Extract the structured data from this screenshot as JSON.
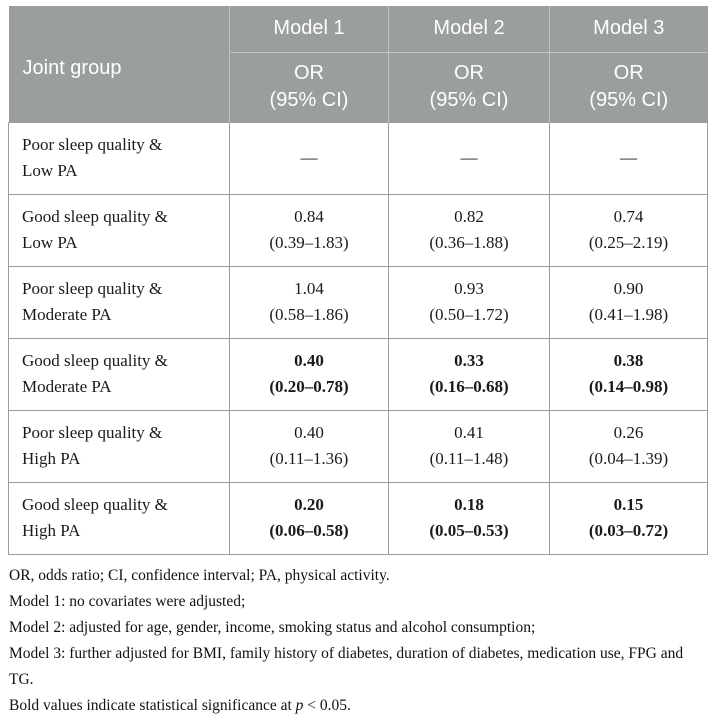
{
  "colors": {
    "header_bg": "#9b9e9e",
    "header_text": "#ffffff",
    "header_divider": "#bfc2c2",
    "grid_line": "#9c9c9c",
    "body_text": "#1a1a1a"
  },
  "table": {
    "header": {
      "joint_group": "Joint group",
      "models": [
        "Model 1",
        "Model 2",
        "Model 3"
      ],
      "subheader_line1": "OR",
      "subheader_line2": "(95% CI)"
    },
    "rows": [
      {
        "label1": "Poor sleep quality &",
        "label2": "Low PA",
        "bold": false,
        "m1_or": "—",
        "m1_ci": "",
        "m2_or": "—",
        "m2_ci": "",
        "m3_or": "—",
        "m3_ci": ""
      },
      {
        "label1": "Good sleep quality &",
        "label2": "Low PA",
        "bold": false,
        "m1_or": "0.84",
        "m1_ci": "(0.39–1.83)",
        "m2_or": "0.82",
        "m2_ci": "(0.36–1.88)",
        "m3_or": "0.74",
        "m3_ci": "(0.25–2.19)"
      },
      {
        "label1": "Poor sleep quality &",
        "label2": "Moderate PA",
        "bold": false,
        "m1_or": "1.04",
        "m1_ci": "(0.58–1.86)",
        "m2_or": "0.93",
        "m2_ci": "(0.50–1.72)",
        "m3_or": "0.90",
        "m3_ci": "(0.41–1.98)"
      },
      {
        "label1": "Good sleep quality &",
        "label2": "Moderate PA",
        "bold": true,
        "m1_or": "0.40",
        "m1_ci": "(0.20–0.78)",
        "m2_or": "0.33",
        "m2_ci": "(0.16–0.68)",
        "m3_or": "0.38",
        "m3_ci": "(0.14–0.98)"
      },
      {
        "label1": "Poor sleep quality &",
        "label2": "High PA",
        "bold": false,
        "m1_or": "0.40",
        "m1_ci": "(0.11–1.36)",
        "m2_or": "0.41",
        "m2_ci": "(0.11–1.48)",
        "m3_or": "0.26",
        "m3_ci": "(0.04–1.39)"
      },
      {
        "label1": "Good sleep quality &",
        "label2": "High PA",
        "bold": true,
        "m1_or": "0.20",
        "m1_ci": "(0.06–0.58)",
        "m2_or": "0.18",
        "m2_ci": "(0.05–0.53)",
        "m3_or": "0.15",
        "m3_ci": "(0.03–0.72)"
      }
    ],
    "notes": {
      "abbrev": "OR, odds ratio; CI, confidence interval; PA, physical activity.",
      "model1": "Model 1: no covariates were adjusted;",
      "model2": "Model 2: adjusted for age, gender, income, smoking status and alcohol consumption;",
      "model3": "Model 3: further adjusted for BMI, family history of diabetes, duration of diabetes, medication use, FPG and TG.",
      "significance_before": "Bold values indicate statistical significance at ",
      "significance_p": "p",
      "significance_after": " < 0.05."
    }
  }
}
